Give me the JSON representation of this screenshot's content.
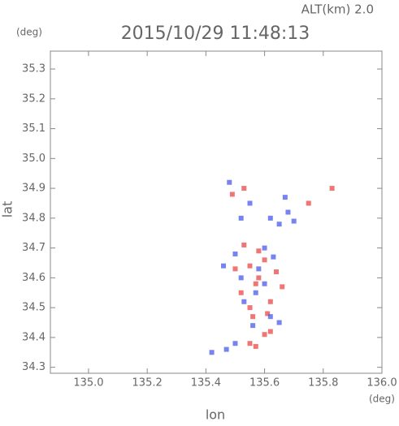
{
  "chart_data": {
    "type": "scatter",
    "title": "2015/10/29 11:48:13",
    "subtitle": "ALT(km) 2.0",
    "y_unit": "(deg)",
    "x_unit": "(deg)",
    "x_label": "lon",
    "y_label": "lat",
    "xlim": [
      134.87,
      136.0
    ],
    "ylim": [
      34.28,
      35.36
    ],
    "xticks": [
      {
        "value": 135.0,
        "label": "135.0"
      },
      135.2,
      135.4,
      135.6,
      135.8,
      {
        "value": 136.0,
        "label": "136.0"
      }
    ],
    "yticks": [
      35.3,
      35.2,
      35.1,
      {
        "value": 35.0,
        "label": "35.0"
      },
      34.9,
      34.8,
      34.7,
      34.6,
      34.5,
      34.4,
      34.3
    ],
    "series": [
      {
        "color": "#e84848",
        "x": [
          135.55,
          135.57,
          135.6,
          135.62,
          135.58,
          135.57,
          135.52,
          135.55,
          135.6,
          135.64,
          135.53,
          135.49,
          135.75,
          135.83,
          135.56,
          135.62,
          135.53,
          135.58,
          135.66,
          135.5,
          135.61,
          135.55
        ],
        "values": [
          34.38,
          34.37,
          34.41,
          34.42,
          34.6,
          34.58,
          34.55,
          34.64,
          34.66,
          34.62,
          34.9,
          34.88,
          34.85,
          34.9,
          34.47,
          34.52,
          34.71,
          34.69,
          34.57,
          34.63,
          34.48,
          34.5
        ]
      },
      {
        "color": "#4a5ae8",
        "x": [
          135.42,
          135.47,
          135.5,
          135.52,
          135.6,
          135.62,
          135.65,
          135.55,
          135.5,
          135.62,
          135.65,
          135.68,
          135.52,
          135.58,
          135.46,
          135.6,
          135.53,
          135.67,
          135.56,
          135.48,
          135.63,
          135.7,
          135.57
        ],
        "values": [
          34.35,
          34.36,
          34.38,
          34.6,
          34.7,
          34.8,
          34.78,
          34.85,
          34.68,
          34.47,
          34.45,
          34.82,
          34.8,
          34.63,
          34.64,
          34.58,
          34.52,
          34.87,
          34.44,
          34.92,
          34.67,
          34.79,
          34.55
        ]
      }
    ]
  }
}
